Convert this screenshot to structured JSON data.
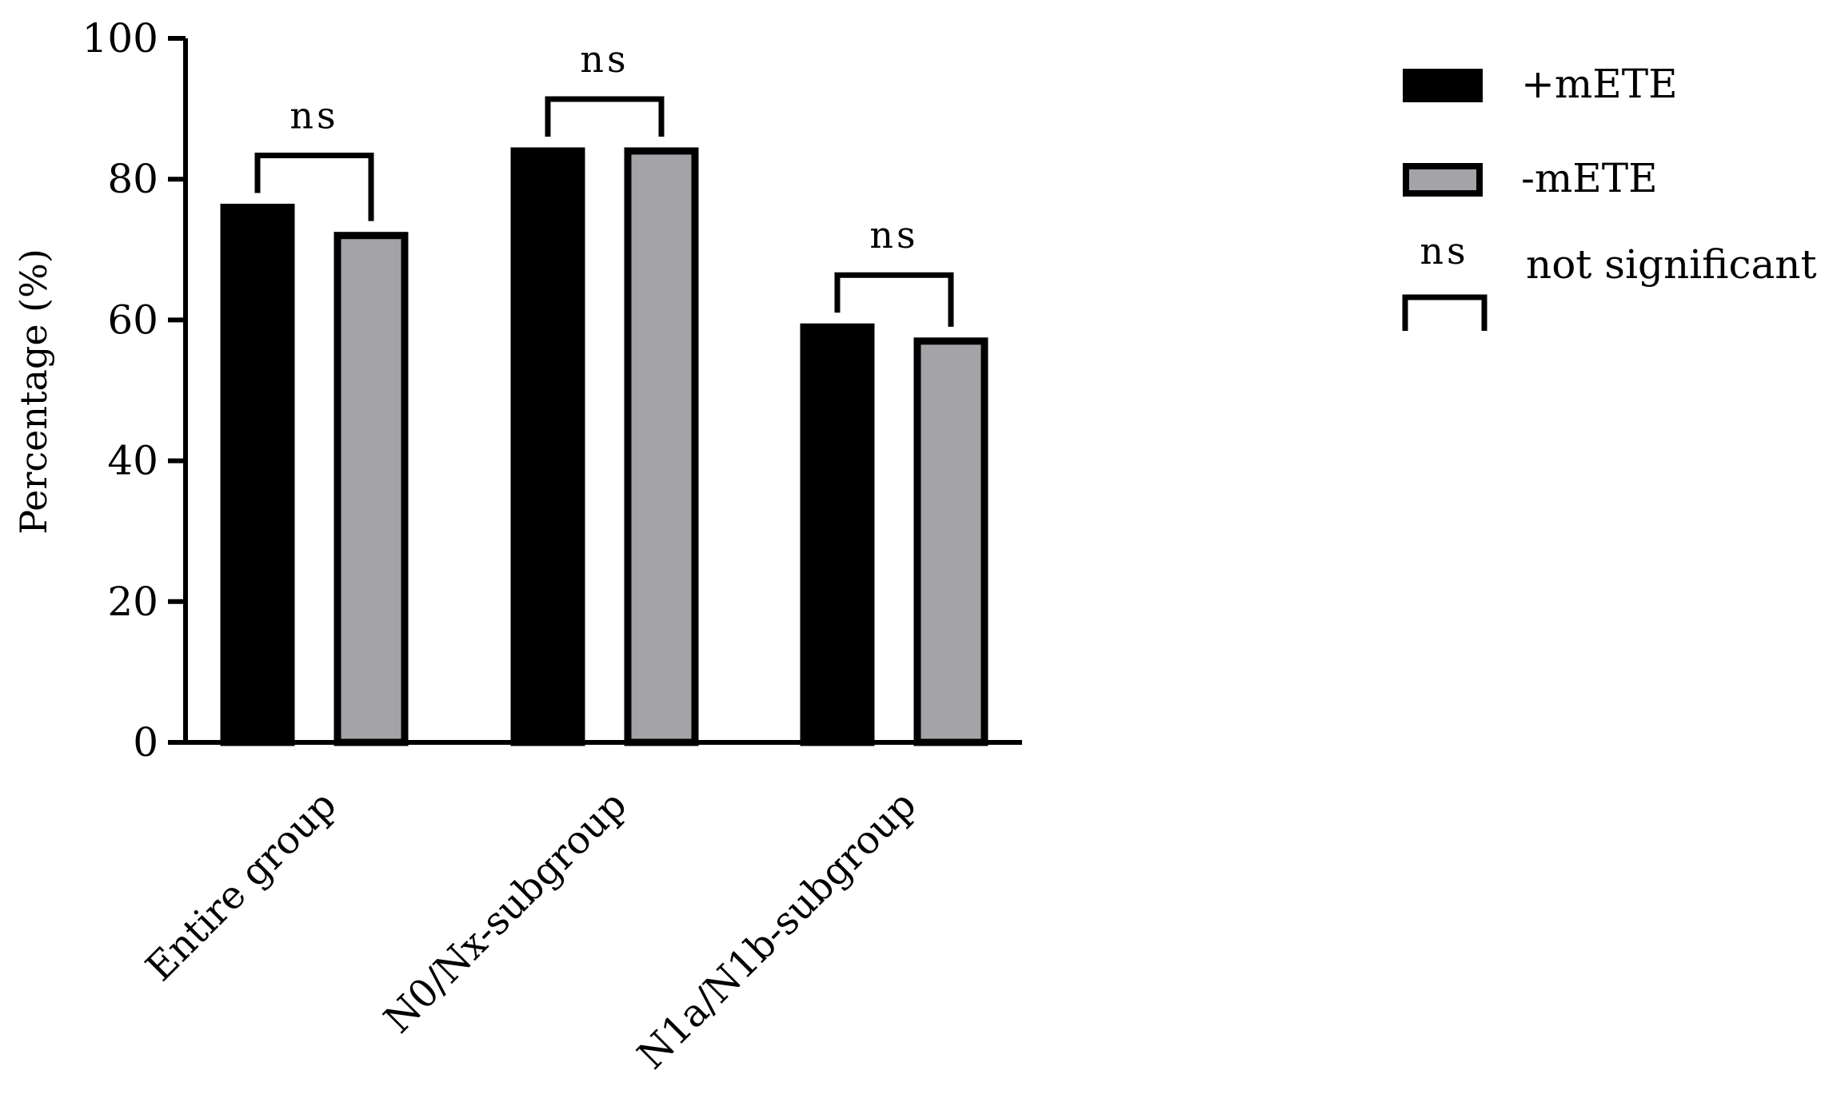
{
  "chart_data": {
    "type": "bar",
    "categories": [
      "Entire group",
      "N0/Nx-subgroup",
      "N1a/N1b-subgroup"
    ],
    "series": [
      {
        "name": "+mETE",
        "values": [
          76,
          84,
          59
        ],
        "color": "#000000"
      },
      {
        "name": "-mETE",
        "values": [
          72,
          84,
          57
        ],
        "color": "#a4a3a8"
      }
    ],
    "ylabel": "Percentage (%)",
    "ylim": [
      0,
      100
    ],
    "yticks": [
      0,
      20,
      40,
      60,
      80,
      100
    ],
    "significance": [
      {
        "category": "Entire group",
        "label": "ns"
      },
      {
        "category": "N0/Nx-subgroup",
        "label": "ns"
      },
      {
        "category": "N1a/N1b-subgroup",
        "label": "ns"
      }
    ],
    "legend": {
      "placement": "top-right",
      "entries": [
        "+mETE",
        "-mETE"
      ],
      "significance_symbol": "ns",
      "significance_text": "not significant"
    }
  }
}
